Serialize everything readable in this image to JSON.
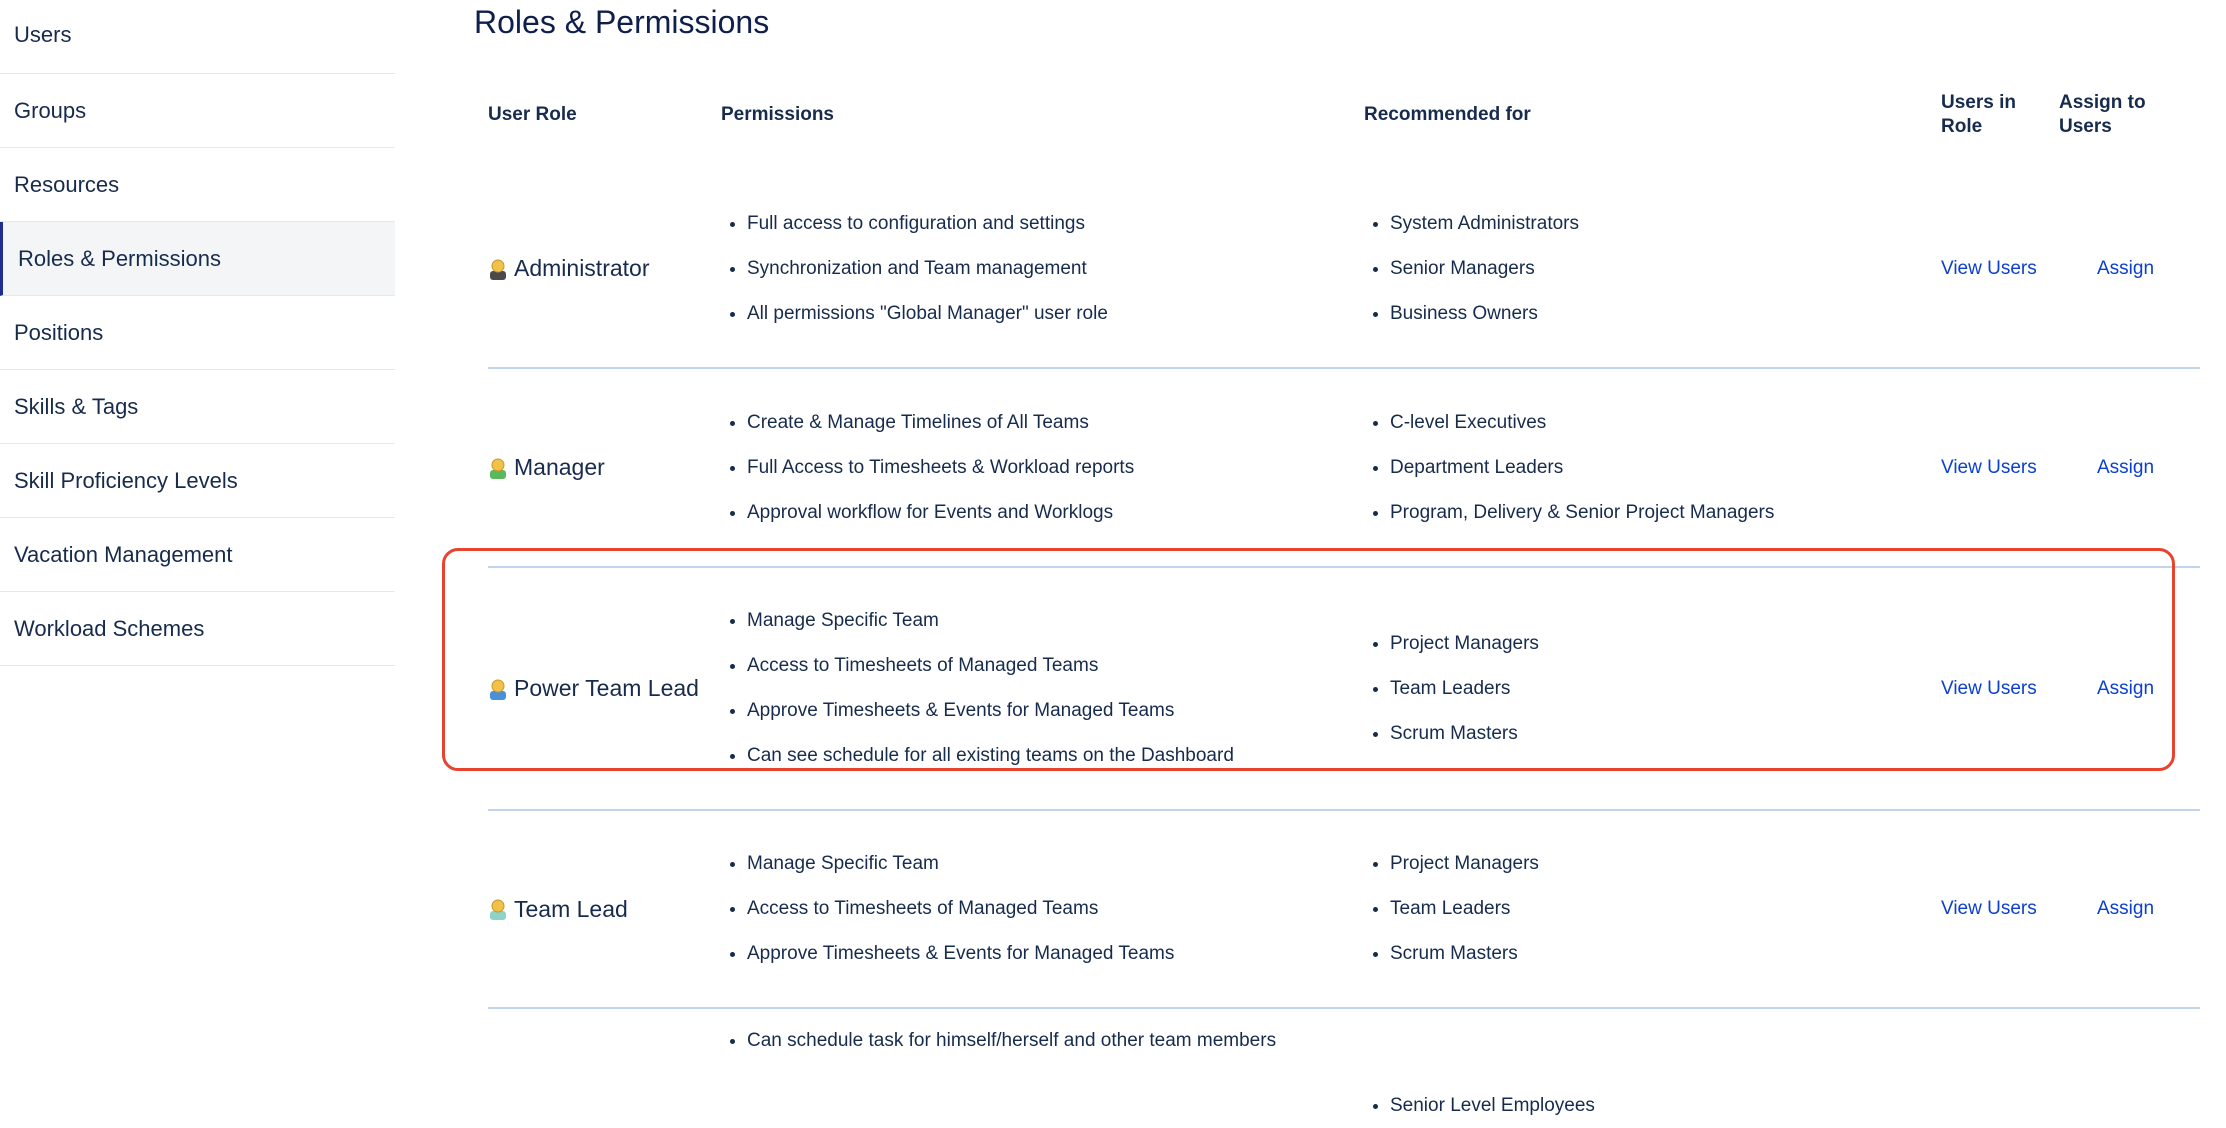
{
  "sidebar": {
    "items": [
      {
        "label": "Users"
      },
      {
        "label": "Groups"
      },
      {
        "label": "Resources"
      },
      {
        "label": "Roles & Permissions",
        "active": true
      },
      {
        "label": "Positions"
      },
      {
        "label": "Skills & Tags"
      },
      {
        "label": "Skill Proficiency Levels"
      },
      {
        "label": "Vacation Management"
      },
      {
        "label": "Workload Schemes"
      }
    ]
  },
  "page": {
    "title": "Roles & Permissions"
  },
  "table": {
    "headers": {
      "role": "User Role",
      "permissions": "Permissions",
      "recommended": "Recommended for",
      "users_in_role": "Users in Role",
      "assign": "Assign to Users"
    },
    "rows": [
      {
        "role": "Administrator",
        "icon": "user-admin-icon",
        "icon_color": "#4a4a4a",
        "permissions": [
          "Full access to configuration and settings",
          "Synchronization and Team management",
          "All permissions \"Global Manager\" user role"
        ],
        "recommended": [
          "System Administrators",
          "Senior Managers",
          "Business Owners"
        ],
        "view": "View Users",
        "assign": "Assign"
      },
      {
        "role": "Manager",
        "icon": "user-manager-icon",
        "icon_color": "#5cb85c",
        "permissions": [
          "Create & Manage Timelines of All Teams",
          "Full Access to Timesheets & Workload reports",
          "Approval workflow for Events and Worklogs"
        ],
        "recommended": [
          "C-level Executives",
          "Department Leaders",
          "Program, Delivery & Senior Project Managers"
        ],
        "view": "View Users",
        "assign": "Assign"
      },
      {
        "role": "Power Team Lead",
        "icon": "user-power-lead-icon",
        "icon_color": "#4a90d9",
        "highlighted": true,
        "permissions": [
          "Manage Specific Team",
          "Access to Timesheets of Managed Teams",
          "Approve Timesheets & Events for Managed Teams",
          "Can see schedule for all existing teams on the Dashboard"
        ],
        "recommended": [
          "Project Managers",
          "Team Leaders",
          "Scrum Masters"
        ],
        "view": "View Users",
        "assign": "Assign"
      },
      {
        "role": "Team Lead",
        "icon": "user-team-lead-icon",
        "icon_color": "#8fd3c8",
        "permissions": [
          "Manage Specific Team",
          "Access to Timesheets of Managed Teams",
          "Approve Timesheets & Events for Managed Teams"
        ],
        "recommended": [
          "Project Managers",
          "Team Leaders",
          "Scrum Masters"
        ],
        "view": "View Users",
        "assign": "Assign"
      },
      {
        "permissions": [
          "Can schedule task for himself/herself and other team members"
        ],
        "recommended": [
          "Senior Level Employees"
        ]
      }
    ]
  },
  "colors": {
    "highlight": "#e8432e",
    "link": "#0b3fd1",
    "divider": "#c2d3ef",
    "active_border": "#1f2f8f"
  }
}
